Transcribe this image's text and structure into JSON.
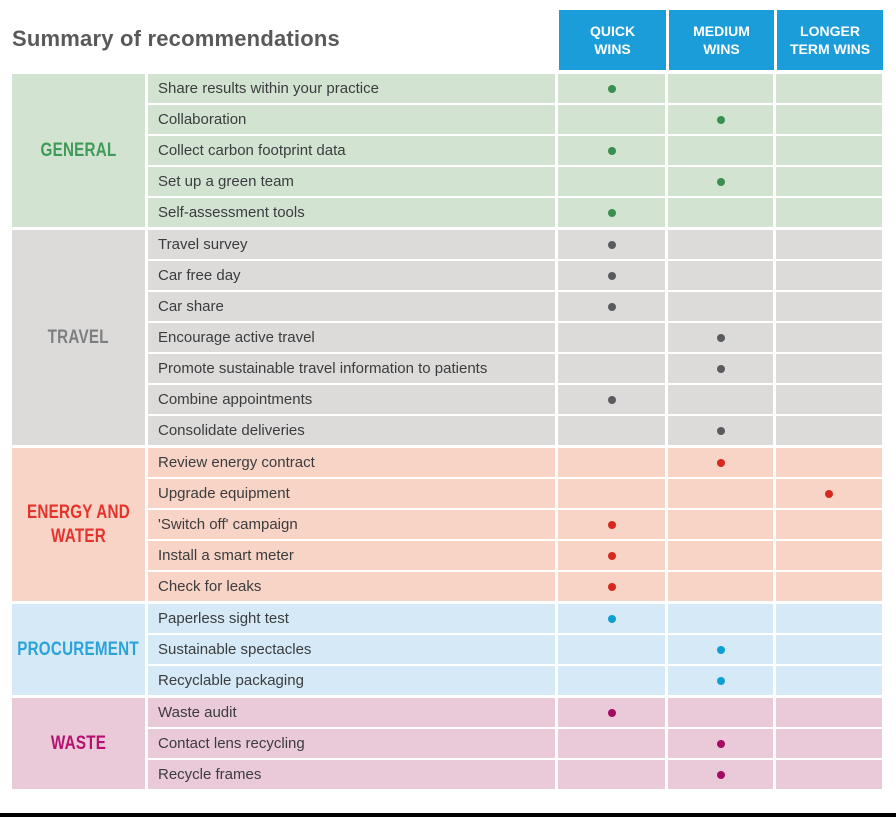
{
  "title": "Summary of recommendations",
  "header_bg": "#1b9dd9",
  "columns": [
    {
      "id": "quick",
      "label": "QUICK\nWINS"
    },
    {
      "id": "medium",
      "label": "MEDIUM\nWINS"
    },
    {
      "id": "longer",
      "label": "LONGER\nTERM WINS"
    }
  ],
  "sections": [
    {
      "name": "GENERAL",
      "bg": "#d3e3d2",
      "label_color": "#3f9b58",
      "dot_color": "#3a8e4f",
      "rows": [
        {
          "label": "Share results within your practice",
          "win": "quick"
        },
        {
          "label": "Collaboration",
          "win": "medium"
        },
        {
          "label": "Collect carbon footprint data",
          "win": "quick"
        },
        {
          "label": "Set up a green team",
          "win": "medium"
        },
        {
          "label": "Self-assessment tools",
          "win": "quick"
        }
      ]
    },
    {
      "name": "TRAVEL",
      "bg": "#dcdbd9",
      "label_color": "#7d7e81",
      "dot_color": "#5a5b5e",
      "rows": [
        {
          "label": "Travel survey",
          "win": "quick"
        },
        {
          "label": "Car free day",
          "win": "quick"
        },
        {
          "label": "Car share",
          "win": "quick"
        },
        {
          "label": "Encourage active travel",
          "win": "medium"
        },
        {
          "label": "Promote sustainable travel information to patients",
          "win": "medium"
        },
        {
          "label": "Combine appointments",
          "win": "quick"
        },
        {
          "label": "Consolidate deliveries",
          "win": "medium"
        }
      ]
    },
    {
      "name": "ENERGY AND WATER",
      "bg": "#f8d4c6",
      "label_color": "#e5332c",
      "dot_color": "#d5281e",
      "rows": [
        {
          "label": "Review energy contract",
          "win": "medium"
        },
        {
          "label": "Upgrade equipment",
          "win": "longer"
        },
        {
          "label": "'Switch off' campaign",
          "win": "quick"
        },
        {
          "label": "Install a smart meter",
          "win": "quick"
        },
        {
          "label": "Check for leaks",
          "win": "quick"
        }
      ]
    },
    {
      "name": "PROCUREMENT",
      "bg": "#d5e9f6",
      "label_color": "#29a3d9",
      "dot_color": "#0c9fd1",
      "rows": [
        {
          "label": "Paperless sight test",
          "win": "quick"
        },
        {
          "label": "Sustainable spectacles",
          "win": "medium"
        },
        {
          "label": "Recyclable packaging",
          "win": "medium"
        }
      ]
    },
    {
      "name": "WASTE",
      "bg": "#eac9d8",
      "label_color": "#b50f70",
      "dot_color": "#a50b63",
      "rows": [
        {
          "label": "Waste audit",
          "win": "quick"
        },
        {
          "label": "Contact lens recycling",
          "win": "medium"
        },
        {
          "label": "Recycle frames",
          "win": "medium"
        }
      ]
    }
  ]
}
